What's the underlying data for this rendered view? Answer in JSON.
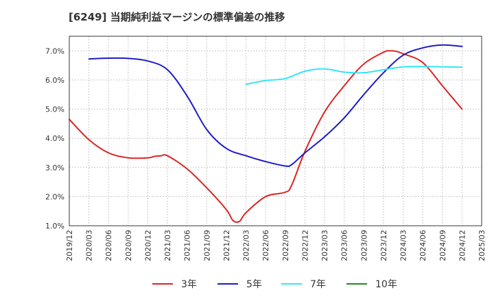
{
  "title": "[6249]  当期純利益マージンの標準偏差の推移",
  "chart_data": {
    "type": "line",
    "title": "[6249]  当期純利益マージンの標準偏差の推移",
    "xlabel": "",
    "ylabel": "",
    "x_ticks": [
      "2019/12",
      "2020/03",
      "2020/06",
      "2020/09",
      "2020/12",
      "2021/03",
      "2021/06",
      "2021/09",
      "2021/12",
      "2022/03",
      "2022/06",
      "2022/09",
      "2022/12",
      "2023/03",
      "2023/06",
      "2023/09",
      "2023/12",
      "2024/03",
      "2024/06",
      "2024/09",
      "2024/12",
      "2025/03"
    ],
    "y_ticks": [
      "1.0%",
      "2.0%",
      "3.0%",
      "4.0%",
      "5.0%",
      "6.0%",
      "7.0%"
    ],
    "ylim": [
      1.0,
      7.5
    ],
    "grid": true,
    "legend_position": "bottom",
    "colors": {
      "3年": "#dd2222",
      "5年": "#1a1acc",
      "7年": "#33e6f0",
      "10年": "#228822"
    },
    "series": [
      {
        "name": "3年",
        "x": [
          "2019/12",
          "2020/03",
          "2020/06",
          "2020/09",
          "2020/12",
          "2021/01",
          "2021/02",
          "2021/03",
          "2021/06",
          "2021/09",
          "2021/12",
          "2022/01",
          "2022/02",
          "2022/03",
          "2022/06",
          "2022/09",
          "2022/10",
          "2022/12",
          "2023/03",
          "2023/06",
          "2023/09",
          "2023/12",
          "2024/01",
          "2024/02",
          "2024/03",
          "2024/06",
          "2024/09",
          "2024/12"
        ],
        "y": [
          4.65,
          3.95,
          3.5,
          3.33,
          3.33,
          3.38,
          3.4,
          3.4,
          2.95,
          2.3,
          1.55,
          1.18,
          1.15,
          1.45,
          2.0,
          2.15,
          2.4,
          3.55,
          4.9,
          5.8,
          6.55,
          6.95,
          7.0,
          6.98,
          6.9,
          6.6,
          5.8,
          5.0
        ]
      },
      {
        "name": "5年",
        "x": [
          "2020/03",
          "2020/06",
          "2020/09",
          "2020/12",
          "2021/03",
          "2021/06",
          "2021/09",
          "2021/12",
          "2022/03",
          "2022/06",
          "2022/09",
          "2022/10",
          "2022/12",
          "2023/03",
          "2023/06",
          "2023/09",
          "2023/12",
          "2024/03",
          "2024/06",
          "2024/09",
          "2024/12"
        ],
        "y": [
          6.72,
          6.75,
          6.74,
          6.65,
          6.35,
          5.45,
          4.3,
          3.65,
          3.4,
          3.2,
          3.05,
          3.1,
          3.5,
          4.05,
          4.7,
          5.5,
          6.25,
          6.85,
          7.1,
          7.2,
          7.15
        ]
      },
      {
        "name": "7年",
        "x": [
          "2022/03",
          "2022/06",
          "2022/09",
          "2022/12",
          "2023/03",
          "2023/06",
          "2023/09",
          "2023/12",
          "2024/03",
          "2024/06",
          "2024/09",
          "2024/12"
        ],
        "y": [
          5.85,
          5.98,
          6.05,
          6.3,
          6.38,
          6.27,
          6.25,
          6.35,
          6.45,
          6.46,
          6.45,
          6.44
        ]
      },
      {
        "name": "10年",
        "x": [],
        "y": []
      }
    ]
  }
}
